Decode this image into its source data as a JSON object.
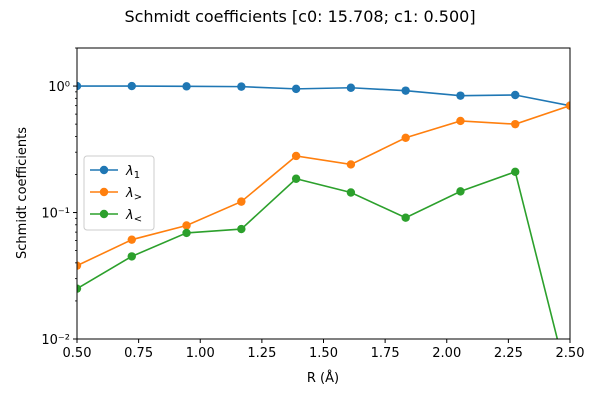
{
  "chart_data": {
    "type": "line",
    "title": "Schmidt coefficients [c0:  15.708; c1:  0.500]",
    "xlabel": "R (Å)",
    "ylabel": "Schmidt coefficients",
    "xlim": [
      0.5,
      2.5
    ],
    "ylim": [
      0.01,
      2.0
    ],
    "yscale": "log",
    "x_ticks": [
      "0.50",
      "0.75",
      "1.00",
      "1.25",
      "1.50",
      "1.75",
      "2.00",
      "2.25",
      "2.50"
    ],
    "y_ticks": [
      {
        "value": 1,
        "label": "10⁰"
      },
      {
        "value": 0.1,
        "label": "10⁻¹"
      },
      {
        "value": 0.01,
        "label": "10⁻²"
      }
    ],
    "legend_position": "center-left",
    "grid": false,
    "x": [
      0.5,
      0.7222,
      0.9444,
      1.1667,
      1.3889,
      1.6111,
      1.8333,
      2.0556,
      2.2778,
      2.5
    ],
    "series": [
      {
        "name": "λ₁",
        "color": "#1f77b4",
        "values": [
          1.0,
          1.0,
          0.995,
          0.99,
          0.95,
          0.97,
          0.92,
          0.84,
          0.85,
          0.7
        ]
      },
      {
        "name": "λ₍›₎",
        "color": "#ff7f0e",
        "values": [
          0.038,
          0.061,
          0.079,
          0.122,
          0.28,
          0.24,
          0.39,
          0.53,
          0.5,
          0.7
        ]
      },
      {
        "name": "λ₍‹₎",
        "color": "#2ca02c",
        "values": [
          0.025,
          0.045,
          0.069,
          0.074,
          0.185,
          0.144,
          0.091,
          0.147,
          0.21,
          0.004
        ]
      }
    ]
  }
}
